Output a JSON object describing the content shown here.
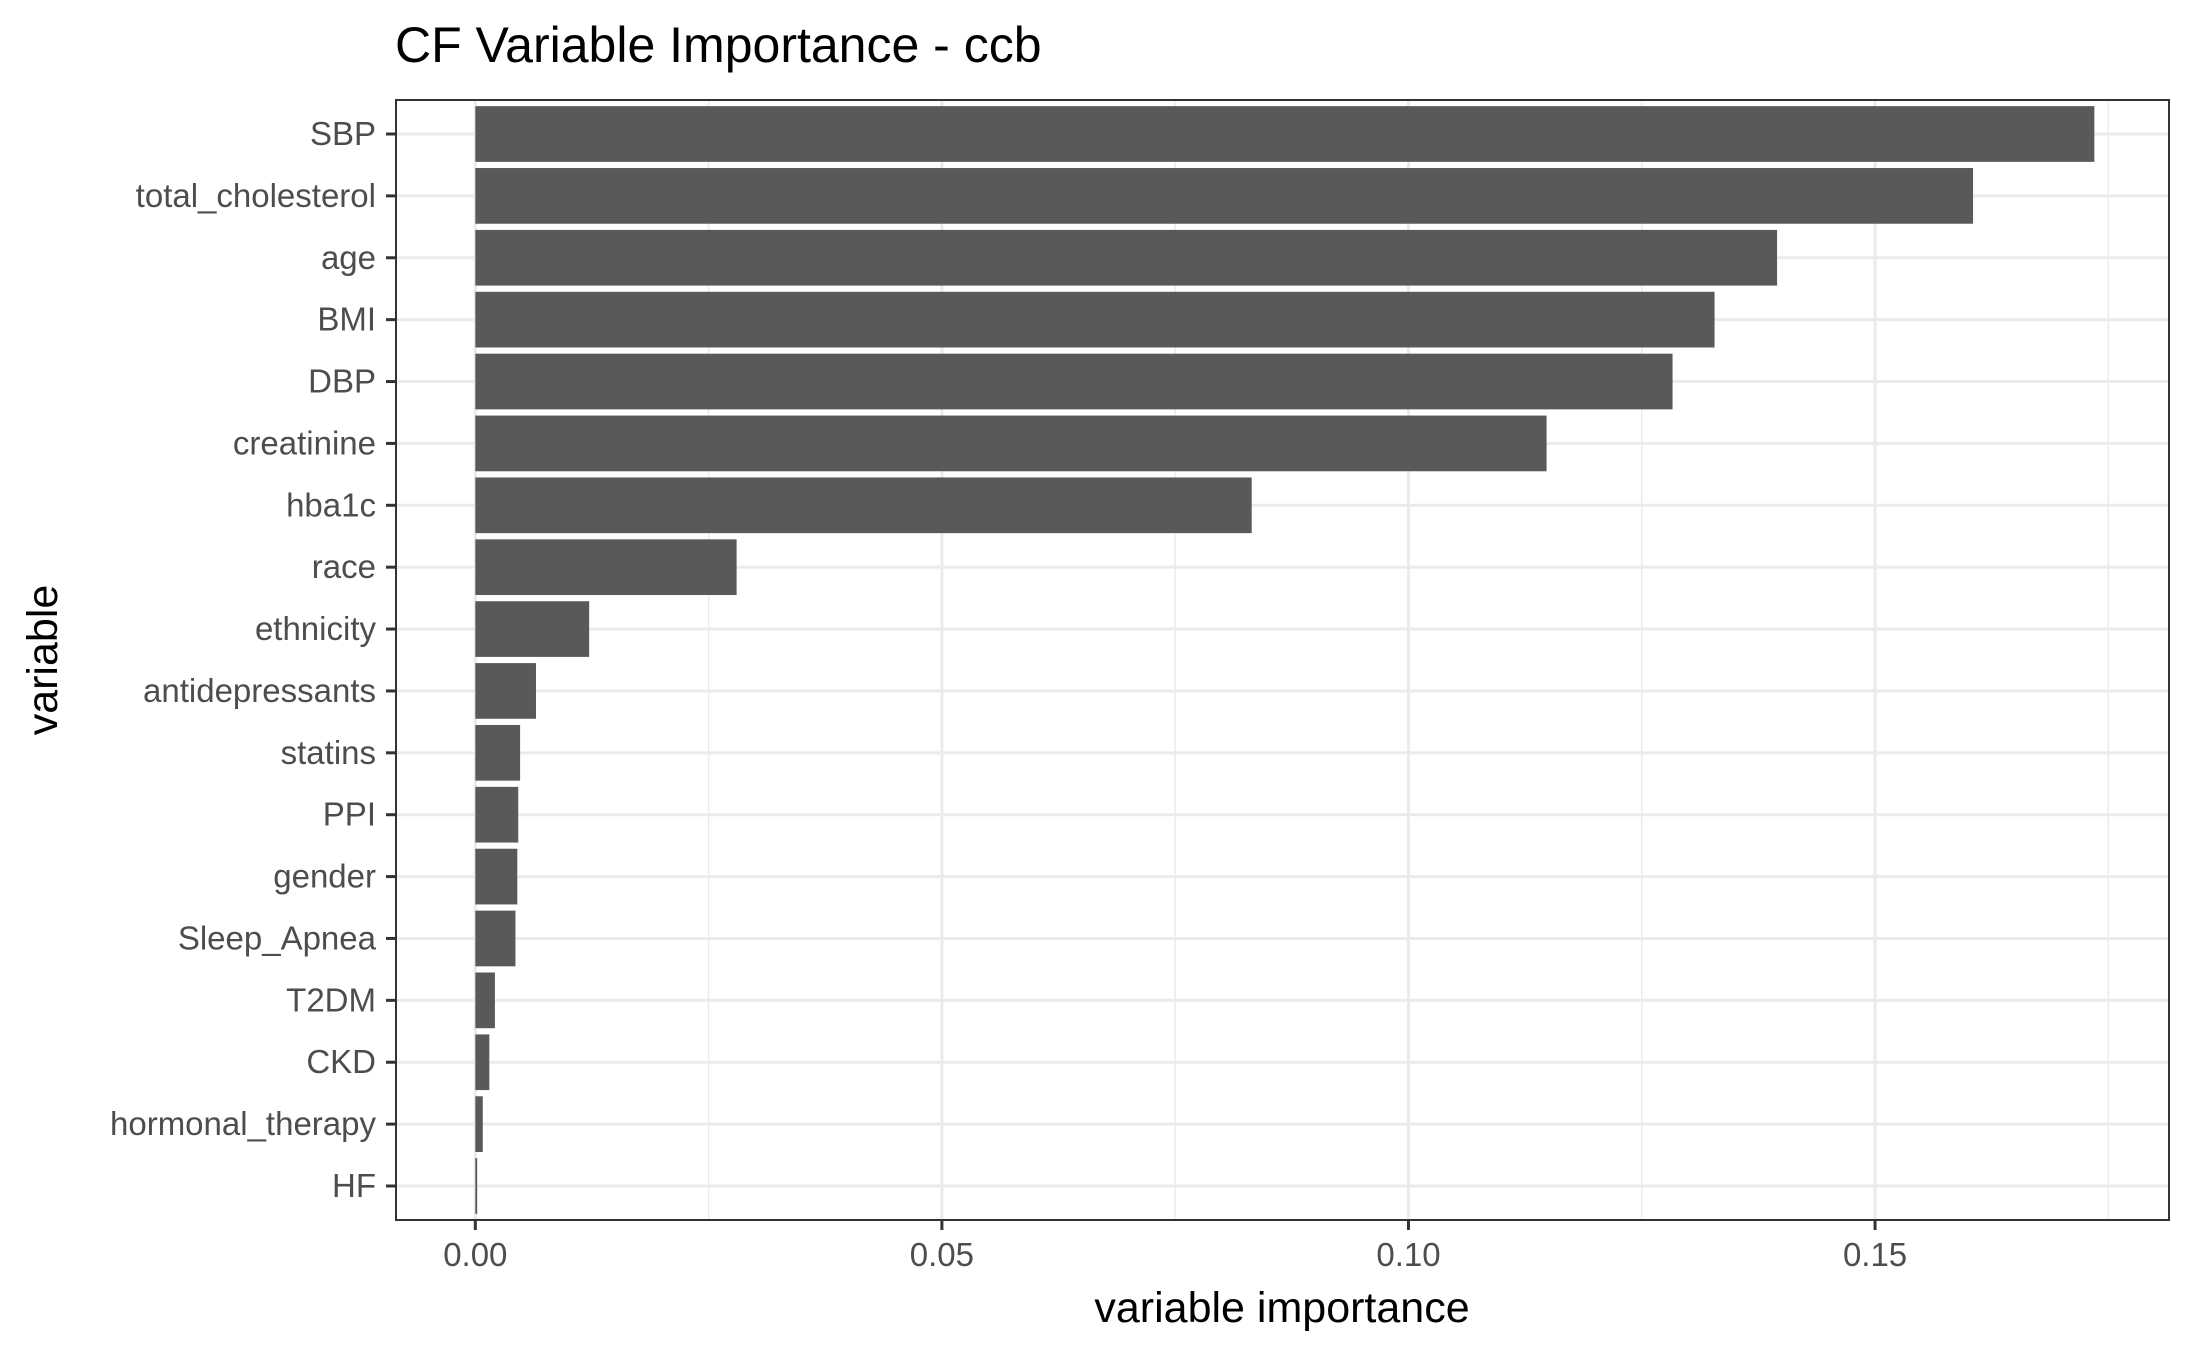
{
  "chart_data": {
    "type": "bar",
    "orientation": "horizontal",
    "title": "CF Variable Importance - ccb",
    "xlabel": "variable importance",
    "ylabel": "variable",
    "xlim": [
      -0.0085,
      0.1815
    ],
    "xticks": [
      0.0,
      0.05,
      0.1,
      0.15
    ],
    "xtick_labels": [
      "0.00",
      "0.05",
      "0.10",
      "0.15"
    ],
    "grid": true,
    "bar_color": "#595959",
    "categories": [
      "SBP",
      "total_cholesterol",
      "age",
      "BMI",
      "DBP",
      "creatinine",
      "hba1c",
      "race",
      "ethnicity",
      "antidepressants",
      "statins",
      "PPI",
      "gender",
      "Sleep_Apnea",
      "T2DM",
      "CKD",
      "hormonal_therapy",
      "HF"
    ],
    "values": [
      0.1735,
      0.1605,
      0.1395,
      0.1328,
      0.1283,
      0.1148,
      0.0832,
      0.028,
      0.0122,
      0.0065,
      0.0048,
      0.0046,
      0.0045,
      0.0043,
      0.0021,
      0.0015,
      0.0008,
      0.0002
    ]
  }
}
